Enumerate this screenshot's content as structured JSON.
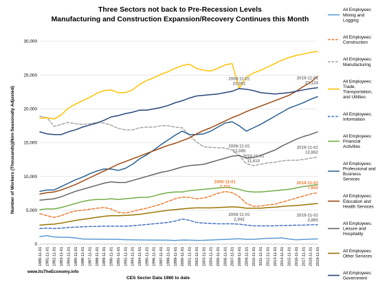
{
  "chart_data": {
    "type": "line",
    "title_line1": "Three Sectors not back to Pre-Recession Levels",
    "title_line2": "Manufacturing and Construction Expansion/Recovery Continues this Month",
    "xlabel": "CES Sector Data 1980 to date",
    "ylabel": "Number of Workers (Thousands)(Non-Seasonally Adjusted)",
    "source": "www.ItsTheEconomy.info",
    "ylim": [
      0,
      30000
    ],
    "y_ticks": [
      "0",
      "5,000",
      "10,000",
      "15,000",
      "20,000",
      "25,000",
      "30,000"
    ],
    "y_tick_values": [
      0,
      5000,
      10000,
      15000,
      20000,
      25000,
      30000
    ],
    "x": [
      "1980-11-01",
      "1981-11-01",
      "1982-11-01",
      "1983-11-01",
      "1984-11-01",
      "1985-11-01",
      "1986-11-01",
      "1987-11-01",
      "1988-11-01",
      "1989-11-01",
      "1990-11-01",
      "1991-11-01",
      "1992-11-01",
      "1993-11-01",
      "1994-11-01",
      "1995-11-01",
      "1996-11-01",
      "1997-11-01",
      "1998-11-01",
      "1999-11-01",
      "2000-11-01",
      "2001-11-01",
      "2002-11-01",
      "2003-11-01",
      "2004-11-01",
      "2005-11-01",
      "2006-11-01",
      "2007-11-01",
      "2008-11-01",
      "2009-11-01",
      "2010-11-01",
      "2011-11-01",
      "2012-11-01",
      "2013-11-01",
      "2014-11-01",
      "2015-11-01",
      "2016-11-01",
      "2017-11-01",
      "2018-11-01",
      "2019-11-01"
    ],
    "grid": true,
    "legend_position": "right",
    "series": [
      {
        "name": "All Employees: Mining and Logging",
        "color": "#5b9bd5",
        "dash": "solid",
        "legend_lines": [
          "All Employees:",
          "Mining and",
          "Logging"
        ],
        "values": [
          1100,
          1250,
          1050,
          1000,
          1000,
          900,
          750,
          730,
          720,
          700,
          710,
          700,
          650,
          620,
          610,
          600,
          580,
          590,
          570,
          540,
          600,
          580,
          550,
          560,
          600,
          650,
          690,
          740,
          790,
          700,
          700,
          780,
          850,
          870,
          900,
          750,
          640,
          680,
          730,
          760
        ]
      },
      {
        "name": "All Employees: Construction",
        "color": "#ed7d31",
        "dash": "dashed",
        "legend_lines": [
          "All Employees:",
          "Construction"
        ],
        "values": [
          4500,
          4200,
          3950,
          4200,
          4600,
          4900,
          5000,
          5150,
          5300,
          5400,
          5200,
          4700,
          4600,
          4800,
          5100,
          5300,
          5600,
          5900,
          6300,
          6700,
          6950,
          6900,
          6700,
          6800,
          7100,
          7500,
          7772,
          7600,
          7000,
          6000,
          5600,
          5600,
          5800,
          5900,
          6200,
          6500,
          6800,
          7100,
          7400,
          7602
        ]
      },
      {
        "name": "All Employees: Manufacturing",
        "color": "#a5a5a5",
        "dash": "dashed",
        "legend_lines": [
          "All Employees:",
          "Manufacturing"
        ],
        "values": [
          18900,
          18700,
          17400,
          17700,
          18000,
          17800,
          17700,
          17800,
          18000,
          17900,
          17600,
          17100,
          16900,
          16900,
          17200,
          17300,
          17300,
          17500,
          17500,
          17300,
          17200,
          16100,
          15100,
          14400,
          14300,
          14250,
          14200,
          13900,
          13085,
          11900,
          11610,
          11800,
          12000,
          12100,
          12300,
          12400,
          12400,
          12500,
          12700,
          12862
        ]
      },
      {
        "name": "All Employees: Trade, Transportation, and Utilities",
        "color": "#ffc000",
        "dash": "solid",
        "legend_lines": [
          "All Employees:",
          "Trade,",
          "Transportation,",
          "and Utilities"
        ],
        "values": [
          18600,
          18700,
          18500,
          19100,
          20100,
          20700,
          21200,
          21700,
          22300,
          22700,
          22800,
          22400,
          22400,
          22800,
          23600,
          24200,
          24600,
          25100,
          25500,
          26000,
          26400,
          26600,
          26000,
          25700,
          25600,
          26000,
          26500,
          26700,
          23051,
          24700,
          25300,
          25700,
          26200,
          26700,
          27200,
          27600,
          27900,
          28100,
          28350,
          28500
        ]
      },
      {
        "name": "All Employees: Information",
        "color": "#4472c4",
        "dash": "dashed",
        "legend_lines": [
          "All Employees:",
          "Information"
        ],
        "values": [
          2300,
          2350,
          2300,
          2350,
          2450,
          2500,
          2550,
          2600,
          2600,
          2650,
          2650,
          2650,
          2650,
          2700,
          2800,
          2900,
          3000,
          3100,
          3200,
          3400,
          3700,
          3500,
          3200,
          3100,
          3050,
          3000,
          3000,
          3000,
          2942,
          2800,
          2700,
          2700,
          2700,
          2700,
          2750,
          2750,
          2800,
          2800,
          2850,
          2865
        ]
      },
      {
        "name": "All Employees: Financial Activities",
        "color": "#70ad47",
        "dash": "solid",
        "legend_lines": [
          "All Employees:",
          "Financial",
          "Activities"
        ],
        "values": [
          5100,
          5200,
          5200,
          5400,
          5700,
          6000,
          6300,
          6500,
          6600,
          6600,
          6700,
          6600,
          6700,
          6800,
          6900,
          6900,
          7100,
          7400,
          7600,
          7700,
          7700,
          7900,
          8000,
          8100,
          8200,
          8300,
          8400,
          8300,
          8100,
          7800,
          7700,
          7700,
          7800,
          7900,
          8000,
          8100,
          8300,
          8500,
          8650,
          8800
        ]
      },
      {
        "name": "All Employees: Professional and Business Services",
        "color": "#255e91",
        "dash": "solid",
        "legend_lines": [
          "All Employees:",
          "Professional and",
          "Business",
          "Services"
        ],
        "values": [
          7800,
          8000,
          8000,
          8500,
          9000,
          9500,
          9900,
          10400,
          10800,
          11100,
          11100,
          10900,
          11200,
          11800,
          12600,
          13200,
          13900,
          14700,
          15400,
          16100,
          16700,
          16200,
          16200,
          16300,
          16700,
          17300,
          17900,
          18100,
          17500,
          16700,
          17200,
          17700,
          18300,
          18900,
          19500,
          20100,
          20500,
          20900,
          21400,
          21800
        ]
      },
      {
        "name": "All Employees: Education and Health Services",
        "color": "#9e480e",
        "dash": "solid",
        "legend_lines": [
          "All Employees:",
          "Education and",
          "Health Services"
        ],
        "values": [
          7400,
          7600,
          7700,
          8000,
          8400,
          8800,
          9300,
          9800,
          10300,
          10800,
          11300,
          11800,
          12200,
          12600,
          13000,
          13400,
          13800,
          14200,
          14600,
          14900,
          15300,
          15700,
          16300,
          16800,
          17200,
          17700,
          18200,
          18700,
          19100,
          19600,
          20000,
          20400,
          20800,
          21200,
          21600,
          22000,
          22600,
          23300,
          23900,
          24800
        ]
      },
      {
        "name": "All Employees: Leisure and Hospitality",
        "color": "#636363",
        "dash": "solid",
        "legend_lines": [
          "All Employees:",
          "Leisure and",
          "Hospitality"
        ],
        "values": [
          6500,
          6600,
          6700,
          7000,
          7400,
          7800,
          8100,
          8400,
          8700,
          9000,
          9200,
          9100,
          9100,
          9400,
          9700,
          10000,
          10300,
          10600,
          10800,
          11100,
          11400,
          11600,
          11700,
          11800,
          12100,
          12400,
          12700,
          13000,
          13100,
          12700,
          12800,
          13100,
          13500,
          13900,
          14500,
          15000,
          15500,
          15900,
          16200,
          16600
        ]
      },
      {
        "name": "All Employees: Other Services",
        "color": "#997300",
        "dash": "solid",
        "legend_lines": [
          "All Employees:",
          "Other Services"
        ],
        "values": [
          2800,
          2900,
          2950,
          3100,
          3300,
          3500,
          3650,
          3800,
          3950,
          4100,
          4200,
          4200,
          4250,
          4300,
          4400,
          4550,
          4700,
          4850,
          5000,
          5100,
          5200,
          5300,
          5350,
          5350,
          5350,
          5400,
          5450,
          5500,
          5450,
          5300,
          5300,
          5300,
          5400,
          5450,
          5550,
          5650,
          5700,
          5800,
          5900,
          6000
        ]
      },
      {
        "name": "All Employees: Government",
        "color": "#264478",
        "dash": "solid",
        "legend_lines": [
          "All Employees:",
          "Government"
        ],
        "values": [
          16600,
          16300,
          16200,
          16200,
          16600,
          16900,
          17300,
          17600,
          17900,
          18300,
          18800,
          19000,
          19300,
          19500,
          19800,
          19800,
          20000,
          20200,
          20500,
          20900,
          21200,
          21600,
          21900,
          22000,
          22100,
          22200,
          22400,
          22600,
          23000,
          22900,
          22700,
          22400,
          22300,
          22200,
          22300,
          22400,
          22600,
          22800,
          23000,
          23124
        ]
      }
    ],
    "annotations": [
      {
        "date": "2008-11-01",
        "value": "23,051",
        "series": 3,
        "color": "#7f7f7f"
      },
      {
        "date": "2019-11-01",
        "value": "23,124",
        "series": 10,
        "color": "#7f7f7f"
      },
      {
        "date": "2008-11-01",
        "value": "13,085",
        "series": 2,
        "color": "#7f7f7f"
      },
      {
        "date": "2010-11-01",
        "value": "11,610",
        "series": 2,
        "color": "#7f7f7f"
      },
      {
        "date": "2019-11-01",
        "value": "12,862",
        "series": 2,
        "color": "#7f7f7f"
      },
      {
        "date": "2006-11-01",
        "value": "7,772",
        "series": 1,
        "color": "#ed7d31"
      },
      {
        "date": "2019-11-01",
        "value": "7,602",
        "series": 1,
        "color": "#ed7d31"
      },
      {
        "date": "2008-11-01",
        "value": "2,942",
        "series": 4,
        "color": "#7f7f7f"
      },
      {
        "date": "2019-11-01",
        "value": "2,865",
        "series": 4,
        "color": "#7f7f7f"
      }
    ]
  }
}
